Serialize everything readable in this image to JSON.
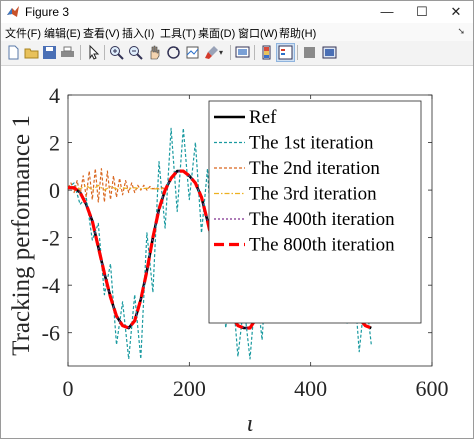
{
  "window": {
    "title": "Figure 3",
    "controls": {
      "minimize": "—",
      "maximize": "☐",
      "close": "✕"
    }
  },
  "menu": [
    {
      "label": "文件(F)"
    },
    {
      "label": "编辑(E)"
    },
    {
      "label": "查看(V)"
    },
    {
      "label": "插入(I)"
    },
    {
      "label": "工具(T)"
    },
    {
      "label": "桌面(D)"
    },
    {
      "label": "窗口(W)"
    },
    {
      "label": "帮助(H)"
    }
  ],
  "toolbar": [
    {
      "icon": "new-figure-icon"
    },
    {
      "icon": "open-file-icon"
    },
    {
      "icon": "save-icon"
    },
    {
      "icon": "print-icon"
    },
    {
      "icon": "edit-plot-icon"
    },
    {
      "icon": "zoom-in-icon"
    },
    {
      "icon": "zoom-out-icon"
    },
    {
      "icon": "pan-icon"
    },
    {
      "icon": "rotate-3d-icon"
    },
    {
      "icon": "data-cursor-icon"
    },
    {
      "icon": "brush-icon"
    },
    {
      "icon": "link-plot-icon"
    },
    {
      "icon": "colorbar-icon"
    },
    {
      "icon": "legend-icon"
    },
    {
      "icon": "hide-plot-tools-icon"
    },
    {
      "icon": "show-plot-tools-icon"
    }
  ],
  "colors": {
    "ref": "#000000",
    "iter1": "#1a9aa0",
    "iter2": "#d9661f",
    "iter3": "#edb120",
    "iter400": "#7e2f8e",
    "iter800": "#ff0000",
    "menu_arrow": "#444444"
  },
  "chart_data": {
    "type": "line",
    "title": "",
    "xlabel": "ι",
    "ylabel": "Tracking performance 1",
    "xlim": [
      0,
      600
    ],
    "ylim": [
      -7.4,
      4
    ],
    "xticks": [
      0,
      200,
      400,
      600
    ],
    "yticks": [
      4,
      2,
      0,
      -2,
      -4,
      -6
    ],
    "xtick_labels": [
      "0",
      "200",
      "400",
      "600"
    ],
    "ytick_labels": [
      "4",
      "2",
      "0",
      "-2",
      "-4",
      "-6"
    ],
    "grid": false,
    "legend_position": "top-right",
    "series": [
      {
        "name": "Ref",
        "style": "solid",
        "x": [
          0,
          10,
          20,
          30,
          40,
          50,
          60,
          70,
          80,
          90,
          100,
          110,
          120,
          130,
          140,
          150,
          160,
          170,
          180,
          190,
          200,
          210,
          220,
          230,
          240,
          250,
          260,
          270,
          280,
          290,
          300,
          310,
          320,
          330,
          340,
          350,
          360,
          370,
          380,
          390,
          400,
          410,
          420,
          430,
          440,
          450,
          460,
          470,
          480,
          490,
          500
        ],
        "y": [
          0.1,
          0.1,
          -0.1,
          -0.6,
          -1.3,
          -2.4,
          -3.5,
          -4.5,
          -5.3,
          -5.7,
          -5.8,
          -5.5,
          -4.6,
          -3.4,
          -2.0,
          -0.8,
          0.0,
          0.5,
          0.8,
          0.8,
          0.6,
          0.3,
          -0.3,
          -1.3,
          -2.4,
          -3.5,
          -4.6,
          -5.3,
          -5.7,
          -5.8,
          -5.8,
          -5.4,
          -4.6,
          -3.4,
          -2.0,
          -0.8,
          0.0,
          0.4,
          0.6,
          0.6,
          0.4,
          0.0,
          -0.7,
          -1.6,
          -2.6,
          -3.5,
          -4.3,
          -4.9,
          -5.4,
          -5.7,
          -5.8
        ]
      },
      {
        "name": "The 1st iteration",
        "style": "dotted",
        "x": [
          0,
          10,
          20,
          30,
          40,
          50,
          60,
          70,
          80,
          90,
          100,
          110,
          120,
          130,
          140,
          150,
          160,
          170,
          180,
          190,
          200,
          210,
          220,
          230,
          240,
          250,
          260,
          270,
          280,
          290,
          300,
          310,
          320,
          330,
          340,
          350,
          360,
          370,
          380,
          390,
          400,
          410,
          420,
          430,
          440,
          450,
          460,
          470,
          480,
          490,
          500
        ],
        "y": [
          0.1,
          0.3,
          -0.6,
          -0.3,
          -2.1,
          -1.4,
          -4.4,
          -3.1,
          -6.5,
          -4.7,
          -7.1,
          -4.4,
          -7.1,
          -1.8,
          -4.3,
          1.2,
          -1.6,
          2.6,
          -0.9,
          2.6,
          -0.4,
          2.0,
          -1.8,
          0.9,
          -3.4,
          -1.5,
          -5.8,
          -3.8,
          -7.0,
          -4.8,
          -7.1,
          -4.0,
          -6.3,
          -1.9,
          -4.1,
          0.6,
          -1.1,
          1.9,
          -0.6,
          1.5,
          -0.5,
          0.8,
          -1.9,
          -0.6,
          -3.6,
          -1.8,
          -5.6,
          -3.3,
          -6.8,
          -4.3,
          -6.5
        ]
      },
      {
        "name": "The 2nd iteration",
        "style": "dashed",
        "x": [
          0,
          5,
          10,
          15,
          20,
          25,
          30,
          35,
          40,
          45,
          50,
          55,
          60,
          65,
          70,
          75,
          80,
          85,
          90,
          95,
          100,
          105,
          110,
          115,
          120,
          125,
          130,
          135,
          140,
          145,
          150,
          155,
          160
        ],
        "y": [
          0.1,
          0.3,
          -0.1,
          0.4,
          -0.2,
          0.6,
          -0.3,
          0.8,
          -0.4,
          0.9,
          -0.5,
          0.9,
          -0.5,
          0.8,
          -0.4,
          0.6,
          -0.3,
          0.5,
          -0.2,
          0.4,
          -0.1,
          0.3,
          -0.1,
          0.2,
          0.0,
          0.2,
          0.0,
          0.15,
          0.05,
          0.1,
          0.05,
          0.1,
          0.05
        ]
      },
      {
        "name": "The 3rd iteration",
        "style": "dash-dot",
        "x": [
          0,
          10,
          20,
          30,
          40,
          50,
          60,
          70,
          80,
          90,
          100,
          110,
          120,
          130,
          140,
          150,
          160
        ],
        "y": [
          0.1,
          0.15,
          0.05,
          0.2,
          0.0,
          0.2,
          0.0,
          0.15,
          0.05,
          0.1,
          0.05,
          0.1,
          0.05,
          0.08,
          0.05,
          0.05,
          0.05
        ]
      },
      {
        "name": "The 400th iteration",
        "style": "dotted",
        "x": [
          0,
          10,
          20,
          30,
          40,
          50,
          60,
          70,
          80,
          90,
          100,
          110,
          120,
          130,
          140,
          150,
          160,
          170,
          180,
          190,
          200,
          210,
          220,
          230,
          240,
          250,
          260,
          270,
          280,
          290,
          300,
          310,
          320,
          330,
          340,
          350,
          360,
          370,
          380,
          390,
          400,
          410,
          420,
          430,
          440,
          450,
          460,
          470,
          480,
          490,
          500
        ],
        "y": [
          0.1,
          0.1,
          -0.1,
          -0.6,
          -1.3,
          -2.4,
          -3.5,
          -4.5,
          -5.3,
          -5.7,
          -5.8,
          -5.5,
          -4.6,
          -3.4,
          -2.0,
          -0.8,
          0.0,
          0.5,
          0.8,
          0.8,
          0.6,
          0.3,
          -0.3,
          -1.3,
          -2.4,
          -3.5,
          -4.6,
          -5.3,
          -5.7,
          -5.8,
          -5.8,
          -5.4,
          -4.6,
          -3.4,
          -2.0,
          -0.8,
          0.0,
          0.4,
          0.6,
          0.6,
          0.4,
          0.0,
          -0.7,
          -1.6,
          -2.6,
          -3.5,
          -4.3,
          -4.9,
          -5.4,
          -5.7,
          -5.8
        ]
      },
      {
        "name": "The 800th iteration",
        "style": "dashed-thick",
        "x": [
          0,
          10,
          20,
          30,
          40,
          50,
          60,
          70,
          80,
          90,
          100,
          110,
          120,
          130,
          140,
          150,
          160,
          170,
          180,
          190,
          200,
          210,
          220,
          230,
          240,
          250,
          260,
          270,
          280,
          290,
          300,
          310,
          320,
          330,
          340,
          350,
          360,
          370,
          380,
          390,
          400,
          410,
          420,
          430,
          440,
          450,
          460,
          470,
          480,
          490,
          500
        ],
        "y": [
          0.1,
          0.1,
          -0.1,
          -0.6,
          -1.3,
          -2.4,
          -3.5,
          -4.5,
          -5.3,
          -5.7,
          -5.8,
          -5.5,
          -4.6,
          -3.4,
          -2.0,
          -0.8,
          0.0,
          0.5,
          0.8,
          0.8,
          0.6,
          0.3,
          -0.3,
          -1.3,
          -2.4,
          -3.5,
          -4.6,
          -5.3,
          -5.7,
          -5.8,
          -5.8,
          -5.4,
          -4.6,
          -3.4,
          -2.0,
          -0.8,
          0.0,
          0.4,
          0.6,
          0.6,
          0.4,
          0.0,
          -0.7,
          -1.6,
          -2.6,
          -3.5,
          -4.3,
          -4.9,
          -5.4,
          -5.7,
          -5.8
        ]
      }
    ]
  }
}
